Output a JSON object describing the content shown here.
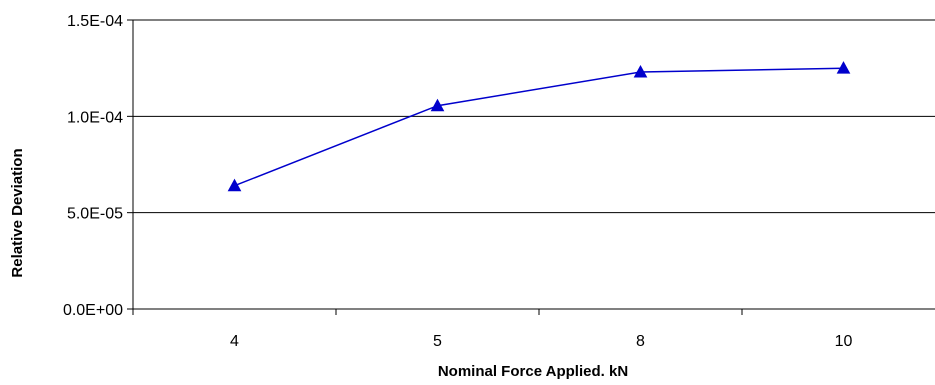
{
  "chart_data": {
    "type": "line",
    "title": "",
    "xlabel": "Nominal Force Applied. kN",
    "ylabel": "Relative Deviation",
    "categories": [
      "4",
      "5",
      "8",
      "10"
    ],
    "series": [
      {
        "values": [
          6.4e-05,
          0.0001055,
          0.000123,
          0.000125
        ],
        "color": "#0000cc",
        "marker": "triangle"
      }
    ],
    "ylim": [
      0,
      0.00015
    ],
    "yticks": [
      0,
      5e-05,
      0.0001,
      0.00015
    ],
    "ytick_labels": [
      "0.0E+00",
      "5.0E-05",
      "1.0E-04",
      "1.5E-04"
    ],
    "grid": "horizontal",
    "legend": "none"
  }
}
